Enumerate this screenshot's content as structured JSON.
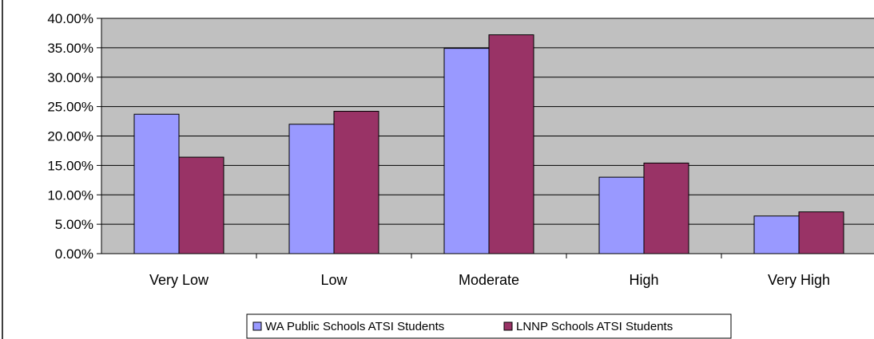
{
  "chart_data": {
    "type": "bar",
    "title": "",
    "xlabel": "",
    "ylabel": "",
    "categories": [
      "Very Low",
      "Low",
      "Moderate",
      "High",
      "Very High"
    ],
    "series": [
      {
        "name": "WA Public Schools ATSI Students",
        "color": "#9999ff",
        "values": [
          0.237,
          0.22,
          0.349,
          0.13,
          0.064
        ]
      },
      {
        "name": "LNNP Schools ATSI Students",
        "color": "#993366",
        "values": [
          0.164,
          0.242,
          0.372,
          0.154,
          0.071
        ]
      }
    ],
    "ylim": [
      0,
      0.4
    ],
    "yticks": [
      0,
      0.05,
      0.1,
      0.15,
      0.2,
      0.25,
      0.3,
      0.35,
      0.4
    ],
    "ytick_labels": [
      "0.00%",
      "5.00%",
      "10.00%",
      "15.00%",
      "20.00%",
      "25.00%",
      "30.00%",
      "35.00%",
      "40.00%"
    ],
    "grid": true,
    "plot_background": "#c0c0c0",
    "legend_position": "bottom"
  }
}
